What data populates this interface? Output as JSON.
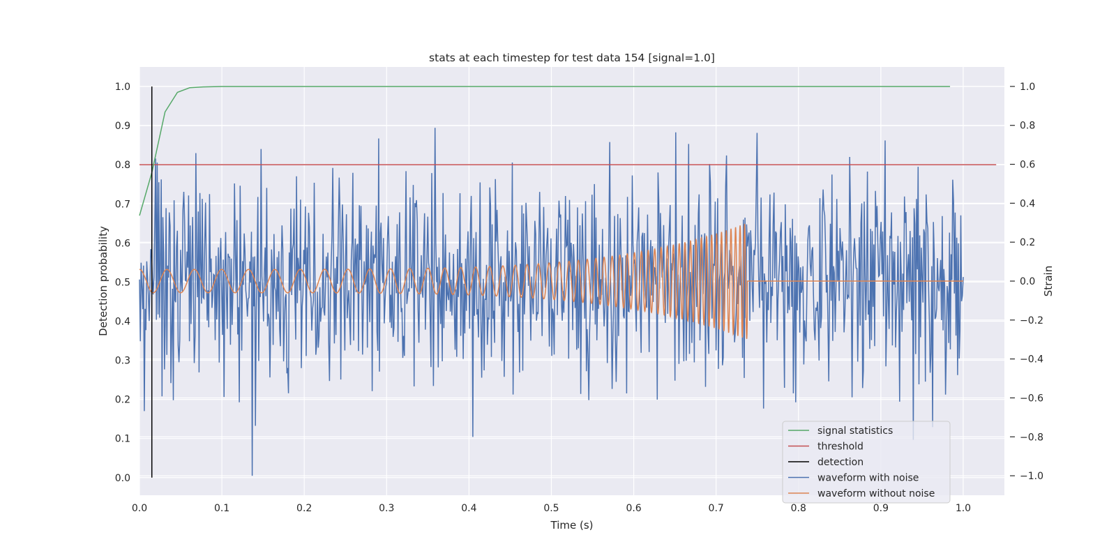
{
  "chart_data": {
    "type": "line",
    "title": "stats at each timestep for test data 154 [signal=1.0]",
    "xlabel": "Time (s)",
    "ylabel": "Detection probability",
    "y2label": "Strain",
    "xlim": [
      0.0,
      1.05
    ],
    "ylim": [
      -0.045,
      1.05
    ],
    "y2lim": [
      -1.1,
      1.1
    ],
    "x_ticks": [
      "0.0",
      "0.1",
      "0.2",
      "0.3",
      "0.4",
      "0.5",
      "0.6",
      "0.7",
      "0.8",
      "0.9",
      "1.0"
    ],
    "y_ticks": [
      "0.0",
      "0.1",
      "0.2",
      "0.3",
      "0.4",
      "0.5",
      "0.6",
      "0.7",
      "0.8",
      "0.9",
      "1.0"
    ],
    "y2_ticks": [
      "−1.0",
      "−0.8",
      "−0.6",
      "−0.4",
      "−0.2",
      "0.0",
      "0.2",
      "0.4",
      "0.6",
      "0.8",
      "1.0"
    ],
    "grid": true,
    "legend_position": "lower-right",
    "series": [
      {
        "name": "signal statistics",
        "color": "#55a868",
        "axis": "left",
        "x": [
          0.0,
          0.015,
          0.031,
          0.046,
          0.061,
          0.077,
          0.1,
          0.2,
          0.4,
          0.6,
          0.8,
          0.984
        ],
        "y": [
          0.67,
          0.78,
          0.935,
          0.985,
          0.997,
          0.999,
          1.0,
          1.0,
          1.0,
          1.0,
          1.0,
          1.0
        ]
      },
      {
        "name": "threshold",
        "color": "#c44e52",
        "axis": "left",
        "x": [
          0.0,
          1.04
        ],
        "y": [
          0.8,
          0.8
        ]
      },
      {
        "name": "detection",
        "color": "#000000",
        "axis": "left",
        "x": [
          0.015,
          0.015
        ],
        "y": [
          0.0,
          1.0
        ]
      },
      {
        "name": "waveform with noise",
        "color": "#4c72b0",
        "axis": "right",
        "x_range": [
          0.0,
          1.0
        ],
        "samples": 1024,
        "std": 0.28,
        "range": [
          -1.0,
          1.0
        ]
      },
      {
        "name": "waveform without noise",
        "color": "#dd8452",
        "axis": "right",
        "x_range": [
          0.0,
          1.0
        ],
        "end_time": 0.738,
        "amplitude": [
          0.06,
          0.3
        ],
        "frequency_hz": [
          30,
          190
        ]
      }
    ]
  }
}
